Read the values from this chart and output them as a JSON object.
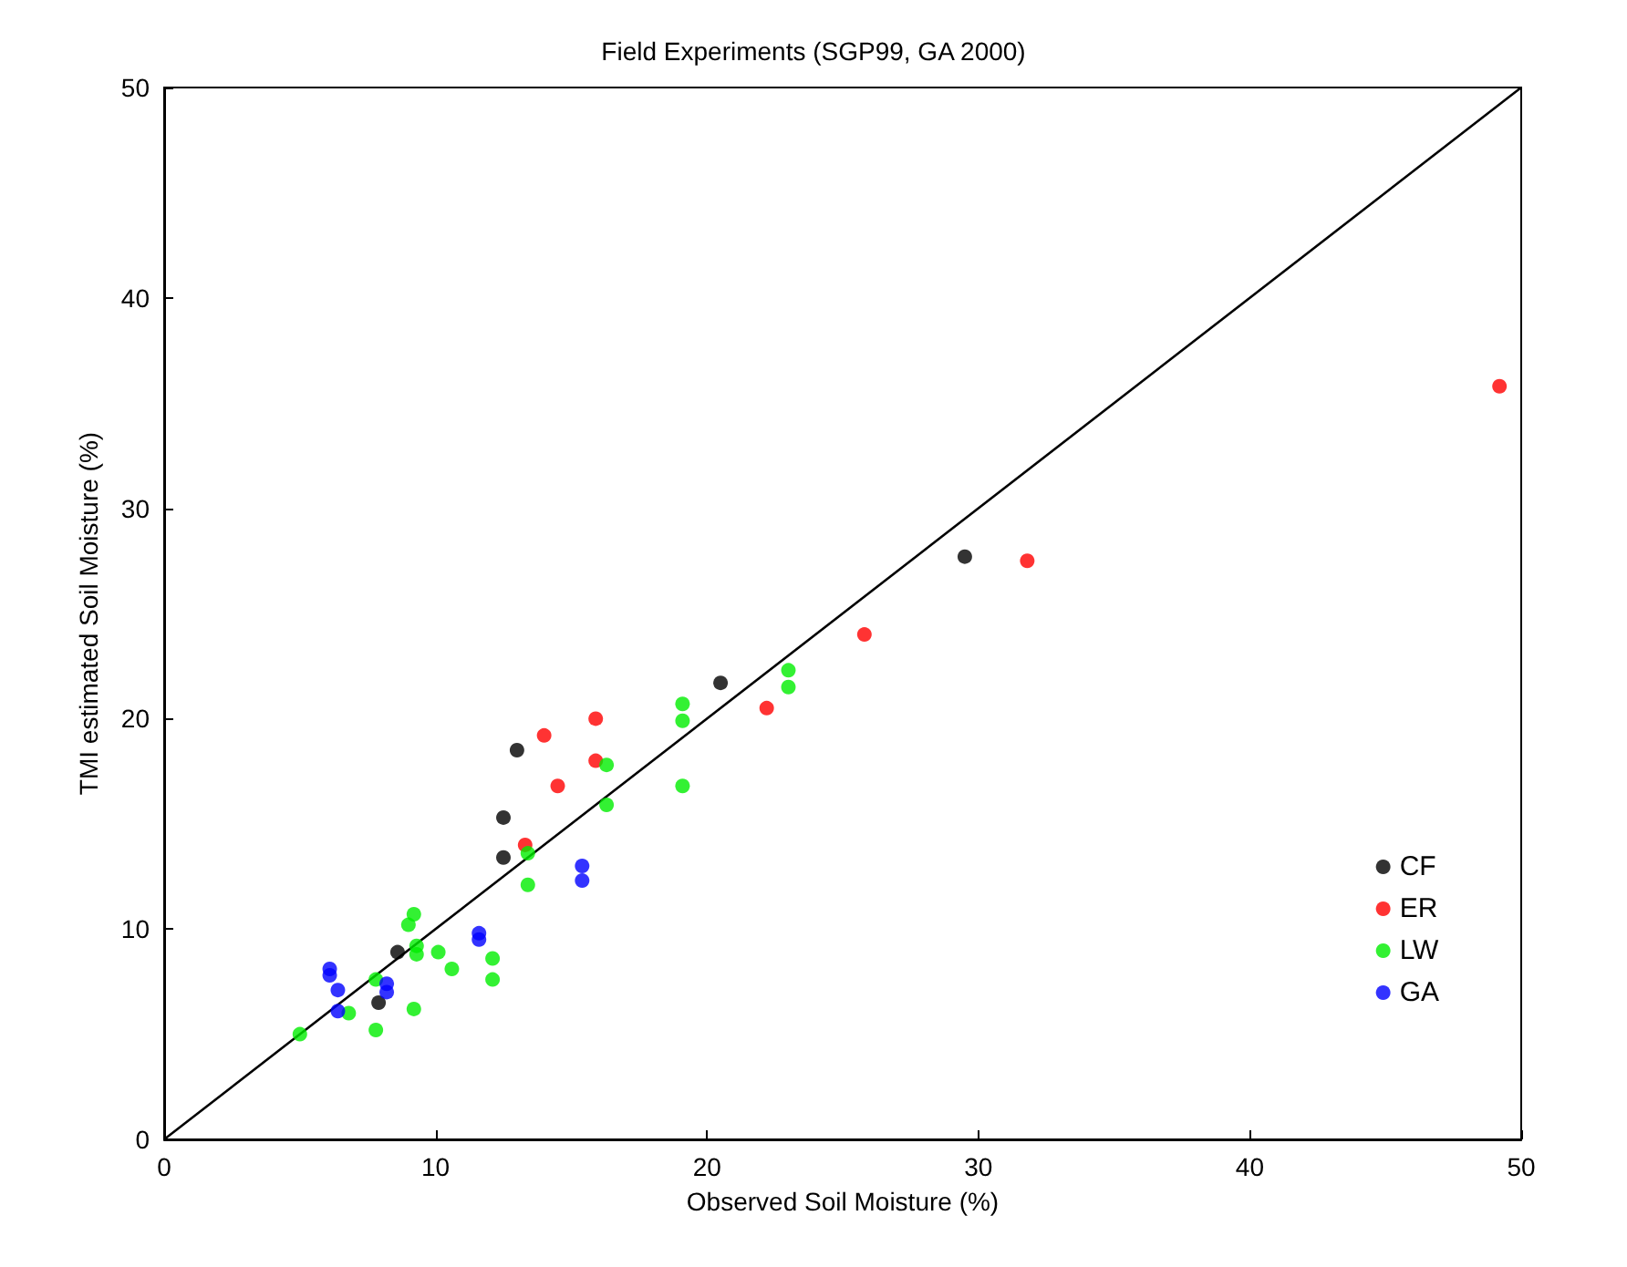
{
  "chart_data": {
    "type": "scatter",
    "title": "Field Experiments (SGP99, GA 2000)",
    "xlabel": "Observed Soil Moisture (%)",
    "ylabel": "TMI estimated Soil Moisture (%)",
    "xlim": [
      0,
      50
    ],
    "ylim": [
      0,
      50
    ],
    "xticks": [
      0,
      10,
      20,
      30,
      40,
      50
    ],
    "yticks": [
      0,
      10,
      20,
      30,
      40,
      50
    ],
    "grid": false,
    "legend": "bottom right",
    "marker": "circle",
    "series": [
      {
        "name": "CF",
        "color": "#000000",
        "x": [
          13.0,
          12.5,
          12.5,
          8.6,
          7.9,
          20.5,
          29.5
        ],
        "values": [
          18.5,
          15.3,
          13.4,
          8.9,
          6.5,
          21.7,
          27.7
        ]
      },
      {
        "name": "ER",
        "color": "#ff0000",
        "x": [
          14.0,
          15.9,
          15.9,
          14.5,
          13.3,
          22.2,
          25.8,
          31.8,
          49.2
        ],
        "values": [
          19.2,
          20.0,
          18.0,
          16.8,
          14.0,
          20.5,
          24.0,
          27.5,
          35.8
        ]
      },
      {
        "name": "LW",
        "color": "#00ee00",
        "x": [
          5.0,
          6.8,
          7.8,
          7.8,
          9.0,
          9.2,
          9.3,
          9.3,
          9.2,
          10.1,
          10.6,
          12.1,
          12.1,
          13.4,
          13.4,
          16.3,
          16.3,
          19.1,
          19.1,
          19.1,
          23.0,
          23.0
        ],
        "values": [
          5.0,
          6.0,
          5.2,
          7.6,
          10.2,
          10.7,
          8.8,
          9.2,
          6.2,
          8.9,
          8.1,
          8.6,
          7.6,
          13.6,
          12.1,
          17.8,
          15.9,
          20.7,
          19.9,
          16.8,
          22.3,
          21.5
        ]
      },
      {
        "name": "GA",
        "color": "#0000ff",
        "x": [
          6.1,
          6.1,
          6.4,
          6.4,
          8.2,
          8.2,
          11.6,
          11.6,
          15.4,
          15.4
        ],
        "values": [
          8.1,
          7.8,
          7.1,
          6.1,
          7.4,
          7.0,
          9.8,
          9.5,
          13.0,
          12.3
        ]
      },
      {
        "type": "line",
        "color": "#000000",
        "x": [
          0,
          50
        ],
        "values": [
          0,
          50
        ],
        "marker": "none"
      }
    ]
  }
}
